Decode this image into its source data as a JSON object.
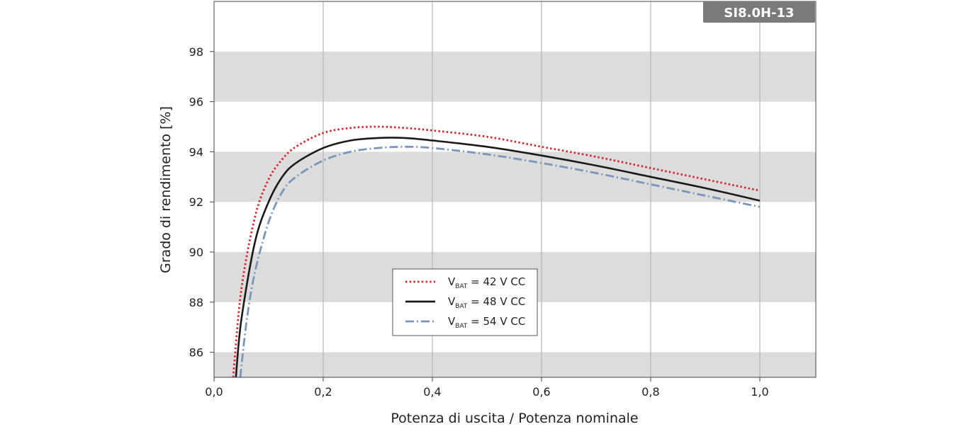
{
  "chart_data": {
    "type": "line",
    "model_label": "SI8.0H-13",
    "xlabel": "Potenza di uscita / Potenza nominale",
    "ylabel": "Grado di rendimento [%]",
    "xlim": [
      0,
      1.1
    ],
    "ylim": [
      85,
      100
    ],
    "x_ticks": [
      0,
      0.2,
      0.4,
      0.6,
      0.8,
      1.0
    ],
    "x_tick_labels": [
      "0,0",
      "0,2",
      "0,4",
      "0,6",
      "0,8",
      "1,0"
    ],
    "y_ticks": [
      86,
      88,
      90,
      92,
      94,
      96,
      98
    ],
    "y_tick_labels": [
      "86",
      "88",
      "90",
      "92",
      "94",
      "96",
      "98"
    ],
    "bands": [
      [
        85,
        86
      ],
      [
        88,
        90
      ],
      [
        92,
        94
      ],
      [
        96,
        98
      ]
    ],
    "grid": "vertical",
    "legend_position": "center-bottom",
    "series": [
      {
        "legend_prefix": "V",
        "legend_sub": "BAT",
        "legend_suffix": " = 42 V CC",
        "color": "#d7262e",
        "style": "dotted",
        "x": [
          0.035,
          0.05,
          0.075,
          0.1,
          0.125,
          0.15,
          0.2,
          0.25,
          0.3,
          0.35,
          0.4,
          0.5,
          0.6,
          0.7,
          0.8,
          0.9,
          1.0
        ],
        "y": [
          85.0,
          88.5,
          91.4,
          92.9,
          93.7,
          94.2,
          94.75,
          94.95,
          95.0,
          94.95,
          94.85,
          94.6,
          94.2,
          93.8,
          93.35,
          92.9,
          92.45
        ]
      },
      {
        "legend_prefix": "V",
        "legend_sub": "BAT",
        "legend_suffix": " = 48 V CC",
        "color": "#1a1a1a",
        "style": "solid",
        "x": [
          0.04,
          0.05,
          0.075,
          0.1,
          0.125,
          0.15,
          0.2,
          0.25,
          0.3,
          0.35,
          0.4,
          0.5,
          0.6,
          0.7,
          0.8,
          0.9,
          1.0
        ],
        "y": [
          85.0,
          87.3,
          90.4,
          92.0,
          93.0,
          93.55,
          94.15,
          94.45,
          94.55,
          94.55,
          94.45,
          94.2,
          93.85,
          93.45,
          93.0,
          92.55,
          92.05
        ]
      },
      {
        "legend_prefix": "V",
        "legend_sub": "BAT",
        "legend_suffix": " = 54 V CC",
        "color": "#7896bd",
        "style": "dashdot",
        "x": [
          0.048,
          0.06,
          0.075,
          0.1,
          0.125,
          0.15,
          0.2,
          0.25,
          0.3,
          0.35,
          0.4,
          0.5,
          0.6,
          0.7,
          0.8,
          0.9,
          1.0
        ],
        "y": [
          85.0,
          87.3,
          89.2,
          91.2,
          92.4,
          93.0,
          93.65,
          94.0,
          94.15,
          94.2,
          94.15,
          93.9,
          93.55,
          93.15,
          92.7,
          92.25,
          91.8
        ]
      }
    ]
  }
}
